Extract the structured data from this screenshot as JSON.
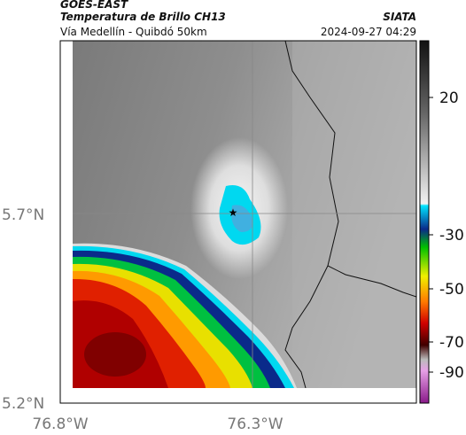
{
  "header": {
    "source": "GOES-EAST",
    "title": "Temperatura de Brillo CH13",
    "agency": "SIATA",
    "route": "Vía Medellín - Quibdó 50km",
    "datetime": "2024-09-27 04:29"
  },
  "map": {
    "lat_labels": [
      "5.7°N",
      "5.2°N"
    ],
    "lon_labels": [
      "76.8°W",
      "76.3°W"
    ]
  },
  "colorbar": {
    "ticks": [
      20,
      -30,
      -50,
      -70,
      -90
    ]
  }
}
